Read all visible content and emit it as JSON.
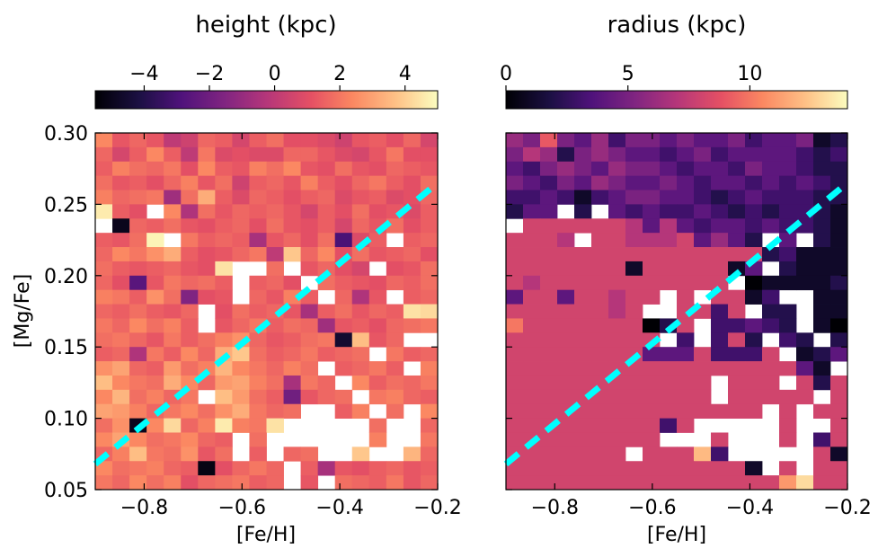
{
  "chart_data": [
    {
      "type": "heatmap",
      "title": "height (kpc)",
      "xlabel": "[Fe/H]",
      "ylabel": "[Mg/Fe]",
      "xlim": [
        -0.9,
        -0.2
      ],
      "ylim": [
        0.05,
        0.3
      ],
      "x_ticks": [
        -0.8,
        -0.6,
        -0.4,
        -0.2
      ],
      "x_tick_labels": [
        "−0.8",
        "−0.6",
        "−0.4",
        "−0.2"
      ],
      "y_ticks": [
        0.05,
        0.1,
        0.15,
        0.2,
        0.25,
        0.3
      ],
      "y_tick_labels": [
        "0.05",
        "0.10",
        "0.15",
        "0.20",
        "0.25",
        "0.30"
      ],
      "colorbar": {
        "label": "height (kpc)",
        "colormap": "magma",
        "range": [
          -5.5,
          5
        ],
        "ticks": [
          -4,
          -2,
          0,
          2,
          4
        ],
        "tick_labels": [
          "−4",
          "−2",
          "0",
          "2",
          "4"
        ]
      },
      "grid": {
        "nx": 20,
        "ny": 25,
        "x_edges": [
          -0.9,
          -0.2
        ],
        "y_edges": [
          0.05,
          0.3
        ],
        "rows_top_to_bottom": [
          [
            2.4,
            1.2,
            1.6,
            1.2,
            0.0,
            0.4,
            1.6,
            1.4,
            0.6,
            1.4,
            1.8,
            1.0,
            1.0,
            0.8,
            0.4,
            1.2,
            1.4,
            1.0,
            1.6,
            0.6
          ],
          [
            1.6,
            0.6,
            1.4,
            2.4,
            1.4,
            0.0,
            2.0,
            0.8,
            1.0,
            0.8,
            0.8,
            1.6,
            1.6,
            1.2,
            0.8,
            0.6,
            1.2,
            2.0,
            1.0,
            1.0
          ],
          [
            1.4,
            2.2,
            1.8,
            1.6,
            2.0,
            1.0,
            2.4,
            1.4,
            1.2,
            2.2,
            1.8,
            2.4,
            1.2,
            1.0,
            1.8,
            1.2,
            1.0,
            1.6,
            1.4,
            1.2
          ],
          [
            1.8,
            1.2,
            1.4,
            1.0,
            1.6,
            2.2,
            1.2,
            1.8,
            0.4,
            1.4,
            1.6,
            1.2,
            2.2,
            1.4,
            1.0,
            1.6,
            2.0,
            1.4,
            1.0,
            1.8
          ],
          [
            2.2,
            1.6,
            1.8,
            2.0,
            -0.8,
            1.8,
            3.2,
            1.4,
            0.8,
            1.6,
            1.4,
            1.0,
            1.4,
            1.6,
            0.8,
            1.2,
            1.4,
            0.8,
            1.0,
            1.6
          ],
          [
            4.6,
            1.4,
            1.0,
            null,
            2.4,
            -0.4,
            1.8,
            1.2,
            1.6,
            1.4,
            1.6,
            1.2,
            0.6,
            1.4,
            1.0,
            1.8,
            1.0,
            1.2,
            0.8,
            1.4
          ],
          [
            null,
            -5.0,
            1.6,
            1.4,
            1.8,
            1.2,
            1.0,
            1.4,
            1.6,
            1.0,
            1.8,
            1.2,
            1.0,
            1.4,
            0.6,
            1.6,
            1.2,
            1.8,
            1.0,
            1.4
          ],
          [
            1.4,
            1.2,
            1.8,
            4.8,
            null,
            2.0,
            1.4,
            1.6,
            1.4,
            -0.6,
            1.2,
            1.6,
            1.0,
            1.8,
            -3.0,
            0.8,
            1.4,
            null,
            1.4,
            1.6
          ],
          [
            1.6,
            2.4,
            2.0,
            2.6,
            3.2,
            1.4,
            1.0,
            1.2,
            1.6,
            2.0,
            0.0,
            3.8,
            1.6,
            2.4,
            1.0,
            1.8,
            1.2,
            1.4,
            1.6,
            1.0
          ],
          [
            1.8,
            1.4,
            1.2,
            1.4,
            1.6,
            1.2,
            1.0,
            4.4,
            null,
            null,
            1.8,
            null,
            1.2,
            1.6,
            1.0,
            0.6,
            null,
            1.0,
            1.2,
            1.8
          ],
          [
            1.6,
            1.0,
            -2.6,
            1.2,
            2.0,
            1.6,
            1.8,
            1.4,
            null,
            1.4,
            1.6,
            1.0,
            null,
            1.8,
            1.4,
            1.2,
            1.0,
            1.6,
            1.4,
            1.8
          ],
          [
            2.2,
            2.0,
            1.4,
            2.6,
            1.8,
            -1.6,
            1.0,
            1.2,
            null,
            1.6,
            1.2,
            2.2,
            1.4,
            null,
            1.6,
            -0.4,
            1.2,
            null,
            1.4,
            1.6
          ],
          [
            1.6,
            1.4,
            1.8,
            1.4,
            1.2,
            1.6,
            null,
            1.0,
            1.8,
            1.4,
            1.6,
            1.2,
            -0.6,
            1.4,
            1.8,
            1.2,
            1.6,
            1.4,
            4.4,
            4.2
          ],
          [
            2.0,
            1.6,
            2.4,
            1.8,
            2.2,
            1.4,
            null,
            1.2,
            1.6,
            2.0,
            1.4,
            1.8,
            1.6,
            -0.8,
            1.2,
            1.4,
            1.0,
            1.6,
            1.8,
            2.0
          ],
          [
            1.8,
            2.0,
            1.6,
            1.2,
            2.0,
            1.4,
            1.8,
            2.2,
            2.6,
            1.6,
            1.2,
            1.4,
            1.8,
            2.0,
            -4.6,
            3.6,
            1.2,
            1.6,
            null,
            null
          ],
          [
            1.4,
            1.6,
            -0.4,
            2.0,
            1.4,
            2.4,
            1.6,
            3.2,
            3.8,
            1.8,
            1.4,
            1.6,
            2.0,
            1.4,
            1.6,
            1.8,
            null,
            2.0,
            1.4,
            1.6
          ],
          [
            2.6,
            3.0,
            1.6,
            1.4,
            2.8,
            1.8,
            2.2,
            3.4,
            2.4,
            2.0,
            1.6,
            2.2,
            1.8,
            null,
            1.4,
            1.6,
            2.0,
            1.4,
            null,
            2.2
          ],
          [
            3.6,
            2.4,
            2.0,
            1.8,
            3.2,
            2.4,
            1.6,
            2.8,
            3.0,
            2.2,
            1.8,
            -0.6,
            2.0,
            1.6,
            null,
            2.4,
            1.4,
            1.8,
            1.6,
            2.0
          ],
          [
            2.4,
            3.4,
            1.8,
            2.2,
            1.6,
            2.0,
            null,
            3.6,
            2.8,
            1.8,
            1.4,
            -2.0,
            1.2,
            1.6,
            1.8,
            null,
            2.0,
            2.2,
            1.6,
            1.4
          ],
          [
            3.0,
            2.8,
            2.2,
            1.6,
            2.0,
            2.4,
            1.8,
            2.6,
            3.2,
            2.0,
            1.6,
            1.8,
            null,
            null,
            1.4,
            2.2,
            null,
            1.8,
            null,
            2.4
          ],
          [
            1.8,
            2.6,
            -5.0,
            2.4,
            4.2,
            1.6,
            2.2,
            4.6,
            2.2,
            2.0,
            4.4,
            null,
            null,
            null,
            null,
            null,
            1.8,
            null,
            null,
            1.6
          ],
          [
            2.4,
            3.0,
            2.4,
            1.8,
            2.0,
            2.4,
            1.6,
            1.4,
            null,
            1.8,
            null,
            null,
            null,
            null,
            null,
            null,
            2.2,
            null,
            null,
            2.0
          ],
          [
            1.6,
            2.2,
            3.6,
            2.0,
            1.8,
            2.6,
            1.2,
            1.8,
            null,
            1.4,
            null,
            1.6,
            1.8,
            null,
            null,
            3.8,
            null,
            null,
            3.4,
            1.6
          ],
          [
            2.4,
            1.8,
            2.0,
            2.2,
            1.6,
            1.4,
            -5.2,
            1.0,
            1.6,
            2.0,
            1.6,
            null,
            1.4,
            -0.6,
            1.2,
            1.0,
            1.4,
            1.6,
            1.2,
            1.4
          ],
          [
            2.0,
            1.6,
            2.4,
            1.8,
            2.2,
            1.0,
            1.6,
            1.8,
            2.0,
            1.4,
            1.6,
            null,
            1.2,
            null,
            1.8,
            1.6,
            1.4,
            2.0,
            1.2,
            1.6
          ]
        ]
      },
      "dashed_line": {
        "color": "#00ffff",
        "x": [
          -0.9,
          -0.2
        ],
        "y": [
          0.068,
          0.265
        ]
      }
    },
    {
      "type": "heatmap",
      "title": "radius (kpc)",
      "xlabel": "[Fe/H]",
      "ylabel": "",
      "xlim": [
        -0.9,
        -0.2
      ],
      "ylim": [
        0.05,
        0.3
      ],
      "x_ticks": [
        -0.8,
        -0.6,
        -0.4,
        -0.2
      ],
      "x_tick_labels": [
        "−0.8",
        "−0.6",
        "−0.4",
        "−0.2"
      ],
      "colorbar": {
        "label": "radius (kpc)",
        "colormap": "magma",
        "range": [
          0,
          14
        ],
        "ticks": [
          0,
          5,
          10
        ],
        "tick_labels": [
          "0",
          "5",
          "10"
        ]
      },
      "grid": {
        "nx": 20,
        "ny": 25,
        "x_edges": [
          -0.9,
          -0.2
        ],
        "y_edges": [
          0.05,
          0.3
        ],
        "rows_top_to_bottom": [
          [
            6,
            5,
            9,
            5,
            4,
            6,
            3,
            5,
            5,
            4,
            5,
            4,
            4,
            5,
            3,
            4,
            4,
            5,
            1,
            2
          ],
          [
            5,
            7,
            6,
            2,
            5,
            6,
            5,
            4,
            4,
            3,
            4,
            5,
            3,
            4,
            4,
            4,
            4,
            3,
            2,
            3
          ],
          [
            4,
            3,
            5,
            6,
            5,
            4,
            6,
            5,
            5,
            4,
            3,
            4,
            4,
            3,
            5,
            4,
            4,
            3,
            2,
            2
          ],
          [
            5,
            4,
            3,
            5,
            4,
            6,
            5,
            4,
            4,
            5,
            4,
            3,
            4,
            4,
            3,
            4,
            3,
            4,
            3,
            2
          ],
          [
            3,
            3,
            4,
            3,
            1,
            3,
            4,
            5,
            5,
            4,
            4,
            3,
            2,
            3,
            4,
            3,
            3,
            3,
            2,
            2
          ],
          [
            2,
            4,
            4,
            null,
            2,
            null,
            4,
            3,
            4,
            3,
            3,
            4,
            3,
            2,
            3,
            2,
            3,
            3,
            2,
            1
          ],
          [
            null,
            8,
            8,
            8,
            8,
            8,
            8,
            7,
            4,
            7,
            4,
            3,
            4,
            4,
            3,
            4,
            3,
            3,
            2,
            1
          ],
          [
            8,
            8,
            8,
            7,
            null,
            8,
            8,
            7,
            7,
            7,
            8,
            4,
            6,
            4,
            2,
            null,
            4,
            null,
            2,
            1
          ],
          [
            8,
            8,
            8,
            8,
            8,
            8,
            8,
            8,
            8,
            8,
            8,
            8,
            8,
            8,
            8,
            2,
            3,
            1,
            1,
            1
          ],
          [
            8,
            8,
            8,
            8,
            8,
            8,
            8,
            1,
            8,
            8,
            8,
            8,
            8,
            1,
            4,
            null,
            2,
            1,
            1,
            1
          ],
          [
            8,
            7,
            8,
            8,
            8,
            8,
            8,
            8,
            8,
            8,
            8,
            8,
            8,
            null,
            0,
            1,
            1,
            1,
            1,
            2
          ],
          [
            4,
            8,
            8,
            4,
            8,
            8,
            7,
            8,
            8,
            null,
            8,
            null,
            8,
            8,
            1,
            3,
            null,
            null,
            1,
            1
          ],
          [
            8,
            8,
            8,
            8,
            8,
            8,
            7,
            8,
            null,
            null,
            8,
            8,
            3,
            8,
            null,
            2,
            2,
            null,
            1,
            1
          ],
          [
            10,
            8,
            8,
            8,
            8,
            8,
            8,
            8,
            0,
            2,
            8,
            null,
            3,
            3,
            4,
            3,
            2,
            null,
            1,
            0
          ],
          [
            8,
            8,
            8,
            8,
            8,
            8,
            8,
            8,
            8,
            null,
            3,
            null,
            3,
            8,
            2,
            null,
            3,
            2,
            null,
            2
          ],
          [
            8,
            8,
            8,
            8,
            8,
            8,
            8,
            8,
            4,
            4,
            4,
            8,
            3,
            3,
            3,
            8,
            null,
            1,
            2,
            4
          ],
          [
            8,
            8,
            8,
            8,
            8,
            8,
            8,
            8,
            8,
            8,
            8,
            8,
            8,
            8,
            8,
            8,
            8,
            4,
            1,
            null
          ],
          [
            8,
            8,
            8,
            8,
            8,
            8,
            8,
            8,
            8,
            8,
            8,
            8,
            null,
            8,
            8,
            8,
            null,
            8,
            2,
            8
          ],
          [
            8,
            8,
            8,
            8,
            8,
            8,
            8,
            8,
            8,
            8,
            8,
            8,
            null,
            8,
            8,
            8,
            8,
            8,
            null,
            8
          ],
          [
            8,
            8,
            8,
            8,
            8,
            8,
            8,
            8,
            8,
            8,
            8,
            8,
            8,
            8,
            8,
            null,
            8,
            null,
            8,
            8
          ],
          [
            8,
            8,
            8,
            8,
            8,
            8,
            8,
            8,
            8,
            3,
            8,
            null,
            null,
            null,
            null,
            null,
            8,
            null,
            null,
            8
          ],
          [
            8,
            8,
            8,
            8,
            8,
            8,
            8,
            8,
            8,
            null,
            null,
            null,
            8,
            null,
            null,
            null,
            8,
            null,
            3,
            8
          ],
          [
            8,
            8,
            8,
            8,
            8,
            8,
            8,
            null,
            8,
            8,
            8,
            12,
            3,
            null,
            null,
            null,
            null,
            null,
            8,
            1
          ],
          [
            8,
            8,
            8,
            8,
            8,
            8,
            8,
            8,
            8,
            8,
            8,
            8,
            8,
            8,
            1,
            null,
            8,
            null,
            8,
            8
          ],
          [
            8,
            8,
            8,
            8,
            8,
            8,
            8,
            8,
            8,
            8,
            8,
            8,
            8,
            8,
            8,
            8,
            11,
            13,
            8,
            8
          ]
        ]
      },
      "dashed_line": {
        "color": "#00ffff",
        "x": [
          -0.9,
          -0.2
        ],
        "y": [
          0.068,
          0.265
        ]
      }
    }
  ]
}
